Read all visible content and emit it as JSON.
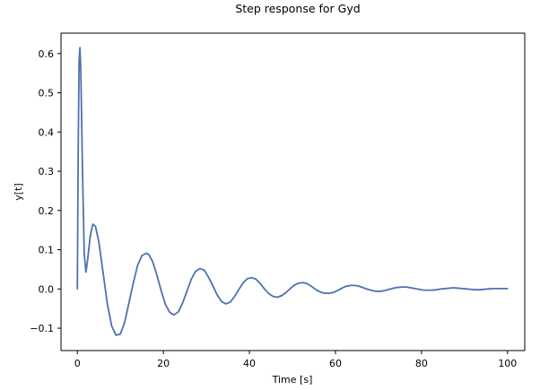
{
  "chart_data": {
    "type": "line",
    "title": "Step response for Gyd",
    "xlabel": "Time [s]",
    "ylabel": "y[t]",
    "xlim": [
      -3.8,
      104
    ],
    "ylim": [
      -0.157,
      0.652
    ],
    "xticks": [
      {
        "value": 0,
        "label": "0"
      },
      {
        "value": 20,
        "label": "20"
      },
      {
        "value": 40,
        "label": "40"
      },
      {
        "value": 60,
        "label": "60"
      },
      {
        "value": 80,
        "label": "80"
      },
      {
        "value": 100,
        "label": "100"
      }
    ],
    "yticks": [
      {
        "value": -0.1,
        "label": "−0.1"
      },
      {
        "value": 0.0,
        "label": "0.0"
      },
      {
        "value": 0.1,
        "label": "0.1"
      },
      {
        "value": 0.2,
        "label": "0.2"
      },
      {
        "value": 0.3,
        "label": "0.3"
      },
      {
        "value": 0.4,
        "label": "0.4"
      },
      {
        "value": 0.5,
        "label": "0.5"
      },
      {
        "value": 0.6,
        "label": "0.6"
      }
    ],
    "grid": false,
    "series": [
      {
        "color": "#4c72b0",
        "x": [
          0,
          0.2,
          0.4,
          0.6,
          0.8,
          1.2,
          1.6,
          2.0,
          2.4,
          3.0,
          3.6,
          4.2,
          5.0,
          6.0,
          7.0,
          8.0,
          9.0,
          10.0,
          11.0,
          12.0,
          13.0,
          14.0,
          15.0,
          16.0,
          16.6,
          17.5,
          18.5,
          19.5,
          20.5,
          21.5,
          22.5,
          23.5,
          24.5,
          25.5,
          26.5,
          27.5,
          28.5,
          29.5,
          30.5,
          31.5,
          32.5,
          33.5,
          34.5,
          35.5,
          36.5,
          37.5,
          38.5,
          39.5,
          40.5,
          41.5,
          42.5,
          43.5,
          44.5,
          45.5,
          46.5,
          47.5,
          48.5,
          49.5,
          50.5,
          51.5,
          52.5,
          53.5,
          54.5,
          55.5,
          56.5,
          57.5,
          58.5,
          59.5,
          60.5,
          61.5,
          62.5,
          63.5,
          64.5,
          65.5,
          66.5,
          67.5,
          68.5,
          69.5,
          70.5,
          71.5,
          72.5,
          73.5,
          74.5,
          75.5,
          76.5,
          77.5,
          78.5,
          79.5,
          80.5,
          81.5,
          82.5,
          83.5,
          84.5,
          85.5,
          86.5,
          87.5,
          88.5,
          89.5,
          90.5,
          91.5,
          92.5,
          93.5,
          94.5,
          95.5,
          96.5,
          97.5,
          98.5,
          99.5,
          100
        ],
        "y": [
          0.0,
          0.35,
          0.58,
          0.615,
          0.56,
          0.3,
          0.09,
          0.043,
          0.075,
          0.135,
          0.165,
          0.16,
          0.12,
          0.04,
          -0.04,
          -0.095,
          -0.118,
          -0.115,
          -0.085,
          -0.035,
          0.015,
          0.06,
          0.085,
          0.091,
          0.088,
          0.07,
          0.035,
          -0.005,
          -0.04,
          -0.06,
          -0.066,
          -0.058,
          -0.035,
          -0.005,
          0.025,
          0.045,
          0.052,
          0.048,
          0.03,
          0.008,
          -0.015,
          -0.032,
          -0.038,
          -0.034,
          -0.02,
          -0.002,
          0.015,
          0.026,
          0.029,
          0.025,
          0.014,
          0.0,
          -0.012,
          -0.019,
          -0.021,
          -0.017,
          -0.009,
          0.001,
          0.01,
          0.015,
          0.016,
          0.013,
          0.006,
          -0.002,
          -0.008,
          -0.011,
          -0.011,
          -0.009,
          -0.004,
          0.002,
          0.007,
          0.009,
          0.009,
          0.007,
          0.003,
          -0.001,
          -0.004,
          -0.006,
          -0.006,
          -0.004,
          -0.001,
          0.002,
          0.004,
          0.005,
          0.005,
          0.003,
          0.001,
          -0.001,
          -0.003,
          -0.003,
          -0.003,
          -0.002,
          0.0,
          0.001,
          0.002,
          0.003,
          0.002,
          0.001,
          0.0,
          -0.001,
          -0.002,
          -0.002,
          -0.001,
          0.0,
          0.001,
          0.001,
          0.001,
          0.001,
          0.001
        ]
      }
    ]
  }
}
